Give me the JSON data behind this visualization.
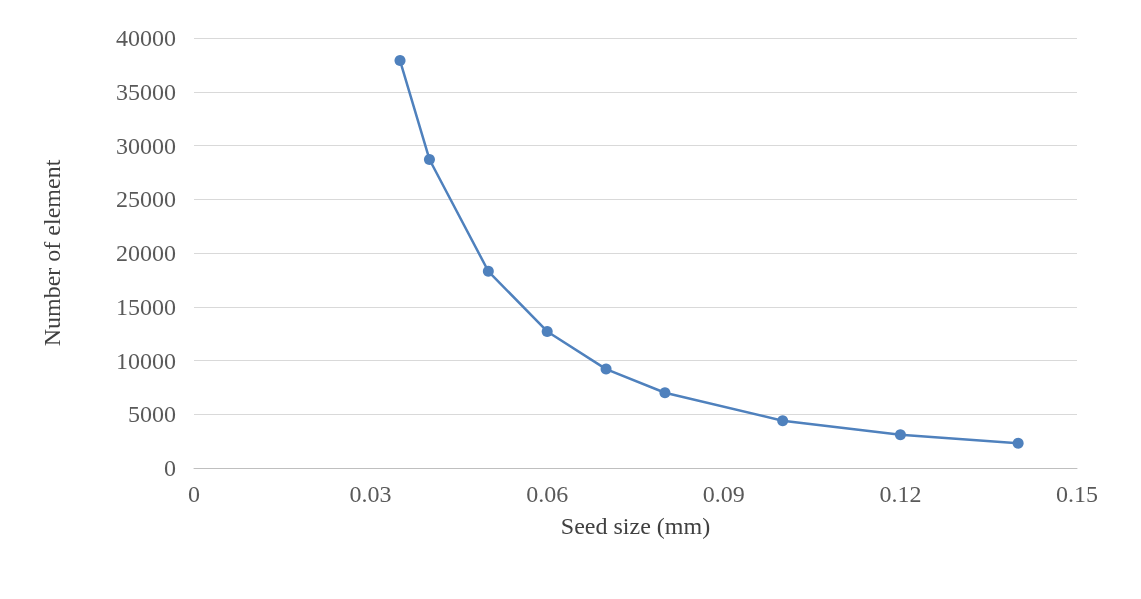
{
  "chart_data": {
    "type": "line",
    "xlabel": "Seed size (mm)",
    "ylabel": "Number of element",
    "x": [
      0.035,
      0.04,
      0.05,
      0.06,
      0.07,
      0.08,
      0.1,
      0.12,
      0.14
    ],
    "series": [
      {
        "color": "#4f81bd",
        "values": [
          37900,
          28700,
          18300,
          12700,
          9200,
          7000,
          4400,
          3100,
          2300
        ]
      }
    ],
    "xlim": [
      0,
      0.15
    ],
    "xticks": [
      0,
      0.03,
      0.06,
      0.09,
      0.12,
      0.15
    ],
    "ylim": [
      0,
      40000
    ],
    "yticks": [
      0,
      5000,
      10000,
      15000,
      20000,
      25000,
      30000,
      35000,
      40000
    ],
    "grid": "y",
    "marker": "circle",
    "line_style": "solid"
  }
}
